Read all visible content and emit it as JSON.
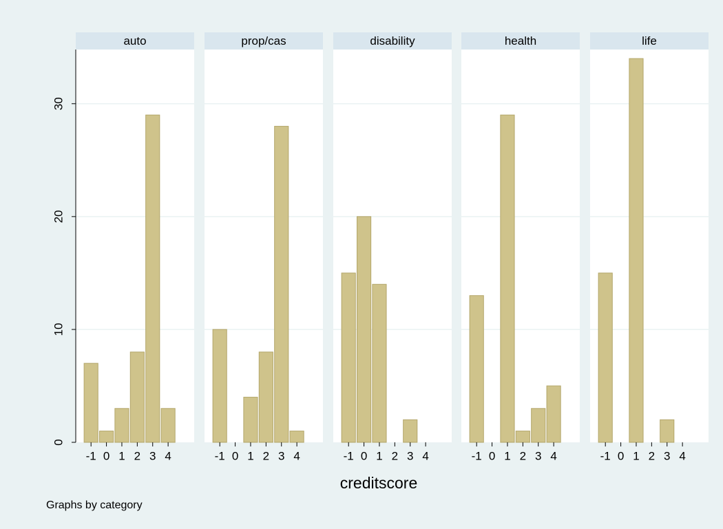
{
  "chart_data": [
    {
      "type": "bar",
      "title": "auto",
      "x": [
        -1,
        0,
        1,
        2,
        3,
        4
      ],
      "values": [
        7,
        1,
        3,
        8,
        29,
        3
      ],
      "color": "#cfc38b",
      "xlim": [
        -1.5,
        5.2
      ],
      "xticks": [
        -1,
        0,
        1,
        2,
        3,
        4
      ],
      "ylim": [
        0,
        34.8
      ],
      "yticks": [
        0,
        10,
        20,
        30
      ],
      "grid": true
    },
    {
      "type": "bar",
      "title": "prop/cas",
      "x": [
        -1,
        0,
        1,
        2,
        3,
        4
      ],
      "values": [
        10,
        0,
        4,
        8,
        28,
        1
      ],
      "color": "#cfc38b",
      "xlim": [
        -1.5,
        5.2
      ],
      "xticks": [
        -1,
        0,
        1,
        2,
        3,
        4
      ],
      "ylim": [
        0,
        34.8
      ],
      "yticks": [
        0,
        10,
        20,
        30
      ],
      "grid": true
    },
    {
      "type": "bar",
      "title": "disability",
      "x": [
        -1,
        0,
        1,
        2,
        3,
        4
      ],
      "values": [
        15,
        20,
        14,
        0,
        2,
        0
      ],
      "color": "#cfc38b",
      "xlim": [
        -1.5,
        5.2
      ],
      "xticks": [
        -1,
        0,
        1,
        2,
        3,
        4
      ],
      "ylim": [
        0,
        34.8
      ],
      "yticks": [
        0,
        10,
        20,
        30
      ],
      "grid": true
    },
    {
      "type": "bar",
      "title": "health",
      "x": [
        -1,
        0,
        1,
        2,
        3,
        4
      ],
      "values": [
        13,
        0,
        29,
        1,
        3,
        5
      ],
      "color": "#cfc38b",
      "xlim": [
        -1.5,
        5.2
      ],
      "xticks": [
        -1,
        0,
        1,
        2,
        3,
        4
      ],
      "ylim": [
        0,
        34.8
      ],
      "yticks": [
        0,
        10,
        20,
        30
      ],
      "grid": true
    },
    {
      "type": "bar",
      "title": "life",
      "x": [
        -1,
        0,
        1,
        2,
        3,
        4
      ],
      "values": [
        15,
        0,
        34,
        0,
        2,
        0
      ],
      "color": "#cfc38b",
      "xlim": [
        -1.5,
        5.2
      ],
      "xticks": [
        -1,
        0,
        1,
        2,
        3,
        4
      ],
      "ylim": [
        0,
        34.8
      ],
      "yticks": [
        0,
        10,
        20,
        30
      ],
      "grid": true
    }
  ],
  "xlabel": "creditscore",
  "note": "Graphs by category"
}
